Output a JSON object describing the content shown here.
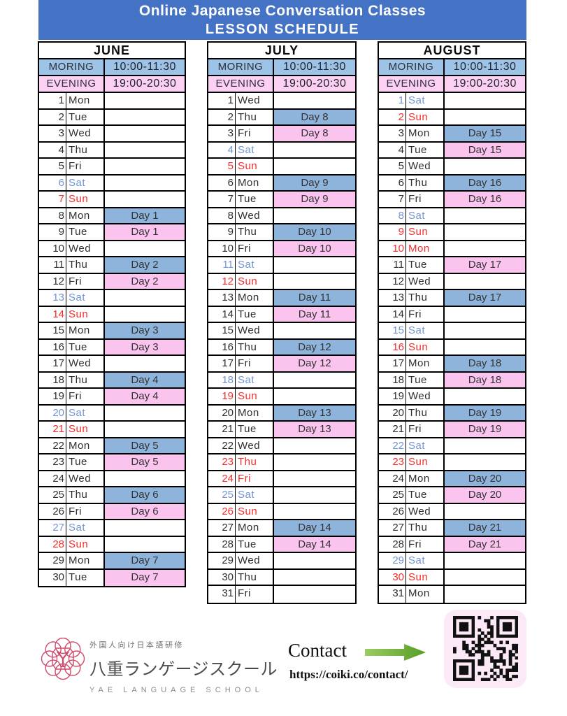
{
  "title": {
    "line1": "Online Japanese Conversation Classes",
    "line2": "LESSON SCHEDULE"
  },
  "sessions": [
    {
      "label": "MORING",
      "time": "10:00-11:30",
      "slot": "morning"
    },
    {
      "label": "EVENING",
      "time": "19:00-20:30",
      "slot": "evening"
    }
  ],
  "months": [
    {
      "name": "JUNE",
      "days": [
        {
          "d": 1,
          "w": "Mon",
          "mark": "",
          "lesson": "",
          "slot": ""
        },
        {
          "d": 2,
          "w": "Tue",
          "mark": "",
          "lesson": "",
          "slot": ""
        },
        {
          "d": 3,
          "w": "Wed",
          "mark": "",
          "lesson": "",
          "slot": ""
        },
        {
          "d": 4,
          "w": "Thu",
          "mark": "",
          "lesson": "",
          "slot": ""
        },
        {
          "d": 5,
          "w": "Fri",
          "mark": "",
          "lesson": "",
          "slot": ""
        },
        {
          "d": 6,
          "w": "Sat",
          "mark": "blue",
          "lesson": "",
          "slot": ""
        },
        {
          "d": 7,
          "w": "Sun",
          "mark": "red",
          "lesson": "",
          "slot": ""
        },
        {
          "d": 8,
          "w": "Mon",
          "mark": "",
          "lesson": "Day 1",
          "slot": "morning"
        },
        {
          "d": 9,
          "w": "Tue",
          "mark": "",
          "lesson": "Day 1",
          "slot": "evening"
        },
        {
          "d": 10,
          "w": "Wed",
          "mark": "",
          "lesson": "",
          "slot": ""
        },
        {
          "d": 11,
          "w": "Thu",
          "mark": "",
          "lesson": "Day 2",
          "slot": "morning"
        },
        {
          "d": 12,
          "w": "Fri",
          "mark": "",
          "lesson": "Day 2",
          "slot": "evening"
        },
        {
          "d": 13,
          "w": "Sat",
          "mark": "blue",
          "lesson": "",
          "slot": ""
        },
        {
          "d": 14,
          "w": "Sun",
          "mark": "red",
          "lesson": "",
          "slot": ""
        },
        {
          "d": 15,
          "w": "Mon",
          "mark": "",
          "lesson": "Day 3",
          "slot": "morning"
        },
        {
          "d": 16,
          "w": "Tue",
          "mark": "",
          "lesson": "Day 3",
          "slot": "evening"
        },
        {
          "d": 17,
          "w": "Wed",
          "mark": "",
          "lesson": "",
          "slot": ""
        },
        {
          "d": 18,
          "w": "Thu",
          "mark": "",
          "lesson": "Day 4",
          "slot": "morning"
        },
        {
          "d": 19,
          "w": "Fri",
          "mark": "",
          "lesson": "Day 4",
          "slot": "evening"
        },
        {
          "d": 20,
          "w": "Sat",
          "mark": "blue",
          "lesson": "",
          "slot": ""
        },
        {
          "d": 21,
          "w": "Sun",
          "mark": "red",
          "lesson": "",
          "slot": ""
        },
        {
          "d": 22,
          "w": "Mon",
          "mark": "",
          "lesson": "Day 5",
          "slot": "morning"
        },
        {
          "d": 23,
          "w": "Tue",
          "mark": "",
          "lesson": "Day 5",
          "slot": "evening"
        },
        {
          "d": 24,
          "w": "Wed",
          "mark": "",
          "lesson": "",
          "slot": ""
        },
        {
          "d": 25,
          "w": "Thu",
          "mark": "",
          "lesson": "Day 6",
          "slot": "morning"
        },
        {
          "d": 26,
          "w": "Fri",
          "mark": "",
          "lesson": "Day 6",
          "slot": "evening"
        },
        {
          "d": 27,
          "w": "Sat",
          "mark": "blue",
          "lesson": "",
          "slot": ""
        },
        {
          "d": 28,
          "w": "Sun",
          "mark": "red",
          "lesson": "",
          "slot": ""
        },
        {
          "d": 29,
          "w": "Mon",
          "mark": "",
          "lesson": "Day 7",
          "slot": "morning"
        },
        {
          "d": 30,
          "w": "Tue",
          "mark": "",
          "lesson": "Day 7",
          "slot": "evening"
        }
      ]
    },
    {
      "name": "JULY",
      "days": [
        {
          "d": 1,
          "w": "Wed",
          "mark": "",
          "lesson": "",
          "slot": ""
        },
        {
          "d": 2,
          "w": "Thu",
          "mark": "",
          "lesson": "Day 8",
          "slot": "morning"
        },
        {
          "d": 3,
          "w": "Fri",
          "mark": "",
          "lesson": "Day 8",
          "slot": "evening"
        },
        {
          "d": 4,
          "w": "Sat",
          "mark": "blue",
          "lesson": "",
          "slot": ""
        },
        {
          "d": 5,
          "w": "Sun",
          "mark": "red",
          "lesson": "",
          "slot": ""
        },
        {
          "d": 6,
          "w": "Mon",
          "mark": "",
          "lesson": "Day 9",
          "slot": "morning"
        },
        {
          "d": 7,
          "w": "Tue",
          "mark": "",
          "lesson": "Day 9",
          "slot": "evening"
        },
        {
          "d": 8,
          "w": "Wed",
          "mark": "",
          "lesson": "",
          "slot": ""
        },
        {
          "d": 9,
          "w": "Thu",
          "mark": "",
          "lesson": "Day 10",
          "slot": "morning"
        },
        {
          "d": 10,
          "w": "Fri",
          "mark": "",
          "lesson": "Day 10",
          "slot": "evening"
        },
        {
          "d": 11,
          "w": "Sat",
          "mark": "blue",
          "lesson": "",
          "slot": ""
        },
        {
          "d": 12,
          "w": "Sun",
          "mark": "red",
          "lesson": "",
          "slot": ""
        },
        {
          "d": 13,
          "w": "Mon",
          "mark": "",
          "lesson": "Day 11",
          "slot": "morning"
        },
        {
          "d": 14,
          "w": "Tue",
          "mark": "",
          "lesson": "Day 11",
          "slot": "evening"
        },
        {
          "d": 15,
          "w": "Wed",
          "mark": "",
          "lesson": "",
          "slot": ""
        },
        {
          "d": 16,
          "w": "Thu",
          "mark": "",
          "lesson": "Day 12",
          "slot": "morning"
        },
        {
          "d": 17,
          "w": "Fri",
          "mark": "",
          "lesson": "Day 12",
          "slot": "evening"
        },
        {
          "d": 18,
          "w": "Sat",
          "mark": "blue",
          "lesson": "",
          "slot": ""
        },
        {
          "d": 19,
          "w": "Sun",
          "mark": "red",
          "lesson": "",
          "slot": ""
        },
        {
          "d": 20,
          "w": "Mon",
          "mark": "",
          "lesson": "Day 13",
          "slot": "morning"
        },
        {
          "d": 21,
          "w": "Tue",
          "mark": "",
          "lesson": "Day 13",
          "slot": "evening"
        },
        {
          "d": 22,
          "w": "Wed",
          "mark": "",
          "lesson": "",
          "slot": ""
        },
        {
          "d": 23,
          "w": "Thu",
          "mark": "red",
          "lesson": "",
          "slot": ""
        },
        {
          "d": 24,
          "w": "Fri",
          "mark": "red",
          "lesson": "",
          "slot": ""
        },
        {
          "d": 25,
          "w": "Sat",
          "mark": "blue",
          "lesson": "",
          "slot": ""
        },
        {
          "d": 26,
          "w": "Sun",
          "mark": "red",
          "lesson": "",
          "slot": ""
        },
        {
          "d": 27,
          "w": "Mon",
          "mark": "",
          "lesson": "Day 14",
          "slot": "morning"
        },
        {
          "d": 28,
          "w": "Tue",
          "mark": "",
          "lesson": "Day 14",
          "slot": "evening"
        },
        {
          "d": 29,
          "w": "Wed",
          "mark": "",
          "lesson": "",
          "slot": ""
        },
        {
          "d": 30,
          "w": "Thu",
          "mark": "",
          "lesson": "",
          "slot": ""
        },
        {
          "d": 31,
          "w": "Fri",
          "mark": "",
          "lesson": "",
          "slot": ""
        }
      ]
    },
    {
      "name": "AUGUST",
      "days": [
        {
          "d": 1,
          "w": "Sat",
          "mark": "blue",
          "lesson": "",
          "slot": ""
        },
        {
          "d": 2,
          "w": "Sun",
          "mark": "red",
          "lesson": "",
          "slot": ""
        },
        {
          "d": 3,
          "w": "Mon",
          "mark": "",
          "lesson": "Day 15",
          "slot": "morning"
        },
        {
          "d": 4,
          "w": "Tue",
          "mark": "",
          "lesson": "Day 15",
          "slot": "evening"
        },
        {
          "d": 5,
          "w": "Wed",
          "mark": "",
          "lesson": "",
          "slot": ""
        },
        {
          "d": 6,
          "w": "Thu",
          "mark": "",
          "lesson": "Day 16",
          "slot": "morning"
        },
        {
          "d": 7,
          "w": "Fri",
          "mark": "",
          "lesson": "Day 16",
          "slot": "evening"
        },
        {
          "d": 8,
          "w": "Sat",
          "mark": "blue",
          "lesson": "",
          "slot": ""
        },
        {
          "d": 9,
          "w": "Sun",
          "mark": "red",
          "lesson": "",
          "slot": ""
        },
        {
          "d": 10,
          "w": "Mon",
          "mark": "red",
          "lesson": "",
          "slot": ""
        },
        {
          "d": 11,
          "w": "Tue",
          "mark": "",
          "lesson": "Day 17",
          "slot": "evening"
        },
        {
          "d": 12,
          "w": "Wed",
          "mark": "",
          "lesson": "",
          "slot": ""
        },
        {
          "d": 13,
          "w": "Thu",
          "mark": "",
          "lesson": "Day 17",
          "slot": "morning"
        },
        {
          "d": 14,
          "w": "Fri",
          "mark": "",
          "lesson": "",
          "slot": ""
        },
        {
          "d": 15,
          "w": "Sat",
          "mark": "blue",
          "lesson": "",
          "slot": ""
        },
        {
          "d": 16,
          "w": "Sun",
          "mark": "red",
          "lesson": "",
          "slot": ""
        },
        {
          "d": 17,
          "w": "Mon",
          "mark": "",
          "lesson": "Day 18",
          "slot": "morning"
        },
        {
          "d": 18,
          "w": "Tue",
          "mark": "",
          "lesson": "Day 18",
          "slot": "evening"
        },
        {
          "d": 19,
          "w": "Wed",
          "mark": "",
          "lesson": "",
          "slot": ""
        },
        {
          "d": 20,
          "w": "Thu",
          "mark": "",
          "lesson": "Day 19",
          "slot": "morning"
        },
        {
          "d": 21,
          "w": "Fri",
          "mark": "",
          "lesson": "Day 19",
          "slot": "evening"
        },
        {
          "d": 22,
          "w": "Sat",
          "mark": "blue",
          "lesson": "",
          "slot": ""
        },
        {
          "d": 23,
          "w": "Sun",
          "mark": "red",
          "lesson": "",
          "slot": ""
        },
        {
          "d": 24,
          "w": "Mon",
          "mark": "",
          "lesson": "Day 20",
          "slot": "morning"
        },
        {
          "d": 25,
          "w": "Tue",
          "mark": "",
          "lesson": "Day 20",
          "slot": "evening"
        },
        {
          "d": 26,
          "w": "Wed",
          "mark": "",
          "lesson": "",
          "slot": ""
        },
        {
          "d": 27,
          "w": "Thu",
          "mark": "",
          "lesson": "Day 21",
          "slot": "morning"
        },
        {
          "d": 28,
          "w": "Fri",
          "mark": "",
          "lesson": "Day 21",
          "slot": "evening"
        },
        {
          "d": 29,
          "w": "Sat",
          "mark": "blue",
          "lesson": "",
          "slot": ""
        },
        {
          "d": 30,
          "w": "Sun",
          "mark": "red",
          "lesson": "",
          "slot": ""
        },
        {
          "d": 31,
          "w": "Mon",
          "mark": "",
          "lesson": "",
          "slot": ""
        }
      ]
    }
  ],
  "footer": {
    "logo": {
      "tagline": "外国人向け日本語研修",
      "name_jp": "八重ランゲージスクール",
      "name_en": "YAE LANGUAGE SCHOOL"
    },
    "contact": {
      "label": "Contact",
      "url": "https://coiki.co/contact/"
    },
    "icons": {
      "arrow": "green-right-arrow-icon",
      "qr": "qr-code",
      "logo": "yae-language-school-emblem"
    }
  },
  "colors": {
    "banner": "#4472C4",
    "morning_header": "#9DC3E6",
    "evening_header": "#FBD0F2",
    "morning_day": "#8FB4DC",
    "evening_day": "#FBC4EF",
    "saturday": "#7195D2",
    "sunday_holiday": "#FA2B2B",
    "logo": "#D24A6B",
    "arrow_start": "#9CCB63",
    "arrow_end": "#559E24",
    "qr_bg": "#FBE9F7",
    "qr_fg": "#111111"
  }
}
